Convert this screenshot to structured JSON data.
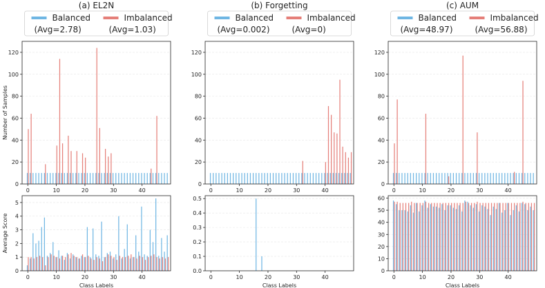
{
  "colors": {
    "balanced": "#6fb6e3",
    "imbalanced": "#e57f79"
  },
  "chart_data": [
    {
      "type": "bar",
      "title": "(a) EL2N",
      "legend": {
        "balanced_label": "Balanced",
        "imbalanced_label": "Imbalanced",
        "balanced_avg": "(Avg=2.78)",
        "imbalanced_avg": "(Avg=1.03)"
      },
      "top": {
        "ylabel": "Number of Samples",
        "ylim": [
          0,
          130
        ],
        "yticks": [
          0,
          20,
          40,
          60,
          80,
          100,
          120
        ],
        "xlim": [
          -2,
          50
        ],
        "xticks": [
          0,
          10,
          20,
          30,
          40
        ],
        "balanced": {
          "x": [
            0,
            1,
            2,
            3,
            4,
            5,
            6,
            7,
            8,
            9,
            10,
            11,
            12,
            13,
            14,
            15,
            16,
            17,
            18,
            19,
            20,
            21,
            22,
            23,
            24,
            25,
            26,
            27,
            28,
            29,
            30,
            31,
            32,
            33,
            34,
            35,
            36,
            37,
            38,
            39,
            40,
            41,
            42,
            43,
            44,
            45,
            46,
            47,
            48,
            49
          ],
          "values": [
            10,
            10,
            10,
            10,
            10,
            10,
            10,
            10,
            10,
            10,
            10,
            10,
            10,
            10,
            10,
            10,
            10,
            10,
            10,
            10,
            10,
            10,
            10,
            10,
            10,
            10,
            10,
            10,
            10,
            10,
            10,
            10,
            10,
            10,
            10,
            10,
            10,
            10,
            10,
            10,
            10,
            10,
            10,
            10,
            10,
            10,
            10,
            10,
            10,
            10
          ]
        },
        "imbalanced": {
          "x": [
            0,
            1,
            6,
            10,
            11,
            12,
            14,
            15,
            17,
            19,
            20,
            24,
            25,
            27,
            28,
            29,
            43,
            45
          ],
          "values": [
            50,
            64,
            18,
            35,
            114,
            37,
            44,
            30,
            30,
            28,
            24,
            124,
            51,
            32,
            25,
            28,
            14,
            62
          ]
        }
      },
      "bottom": {
        "ylabel": "Average Score",
        "xlabel": "Class Labels",
        "ylim": [
          0,
          5.5
        ],
        "yticks": [
          0,
          1,
          2,
          3,
          4,
          5
        ],
        "xlim": [
          -2,
          50
        ],
        "xticks": [
          0,
          10,
          20,
          30,
          40
        ],
        "balanced": {
          "x": [
            0,
            1,
            2,
            3,
            4,
            5,
            6,
            7,
            8,
            9,
            10,
            11,
            12,
            13,
            14,
            15,
            16,
            17,
            18,
            19,
            20,
            21,
            22,
            23,
            24,
            25,
            26,
            27,
            28,
            29,
            30,
            31,
            32,
            33,
            34,
            35,
            36,
            37,
            38,
            39,
            40,
            41,
            42,
            43,
            44,
            45,
            46,
            47,
            48,
            49
          ],
          "values": [
            0.4,
            0.9,
            2.75,
            2.0,
            2.2,
            3.2,
            3.9,
            1.1,
            1.3,
            2.1,
            1.0,
            1.5,
            1.1,
            0.8,
            1.3,
            0.9,
            1.2,
            1.0,
            0.9,
            1.1,
            1.0,
            3.2,
            1.0,
            3.1,
            1.2,
            1.1,
            3.6,
            1.0,
            1.3,
            1.4,
            0.9,
            1.2,
            4.0,
            0.9,
            1.6,
            3.4,
            0.9,
            1.0,
            2.6,
            1.4,
            4.7,
            1.2,
            1.1,
            3.0,
            2.1,
            5.3,
            1.1,
            2.4,
            1.4,
            2.6
          ]
        },
        "imbalanced": {
          "x": [
            0,
            1,
            2,
            3,
            4,
            5,
            6,
            7,
            8,
            9,
            10,
            11,
            12,
            13,
            14,
            15,
            16,
            17,
            18,
            19,
            20,
            21,
            22,
            23,
            24,
            25,
            26,
            27,
            28,
            29,
            30,
            31,
            32,
            33,
            34,
            35,
            36,
            37,
            38,
            39,
            40,
            41,
            42,
            43,
            44,
            45,
            46,
            47,
            48,
            49
          ],
          "values": [
            1.0,
            1.0,
            0.9,
            1.0,
            1.1,
            1.0,
            0.4,
            1.0,
            1.2,
            1.1,
            1.0,
            0.9,
            1.1,
            1.0,
            1.2,
            1.3,
            1.1,
            1.0,
            0.9,
            1.2,
            1.0,
            1.1,
            0.9,
            0.8,
            1.0,
            0.9,
            0.7,
            1.0,
            1.2,
            1.1,
            1.0,
            0.8,
            1.1,
            1.0,
            1.0,
            1.1,
            1.2,
            1.0,
            0.9,
            1.1,
            1.0,
            0.8,
            1.0,
            1.1,
            1.2,
            1.0,
            0.9,
            1.0,
            0.9,
            1.0
          ]
        }
      }
    },
    {
      "type": "bar",
      "title": "(b) Forgetting",
      "legend": {
        "balanced_label": "Balanced",
        "imbalanced_label": "Imbalanced",
        "balanced_avg": "(Avg=0.002)",
        "imbalanced_avg": "(Avg=0)"
      },
      "top": {
        "ylabel": "",
        "ylim": [
          0,
          130
        ],
        "yticks": [
          0,
          20,
          40,
          60,
          80,
          100,
          120
        ],
        "xlim": [
          -2,
          50
        ],
        "xticks": [
          0,
          10,
          20,
          30,
          40
        ],
        "balanced": {
          "x": [
            0,
            1,
            2,
            3,
            4,
            5,
            6,
            7,
            8,
            9,
            10,
            11,
            12,
            13,
            14,
            15,
            16,
            17,
            18,
            19,
            20,
            21,
            22,
            23,
            24,
            25,
            26,
            27,
            28,
            29,
            30,
            31,
            32,
            33,
            34,
            35,
            36,
            37,
            38,
            39,
            40,
            41,
            42,
            43,
            44,
            45,
            46,
            47,
            48,
            49
          ],
          "values": [
            10,
            10,
            10,
            10,
            10,
            10,
            10,
            10,
            10,
            10,
            10,
            10,
            10,
            10,
            10,
            10,
            10,
            10,
            10,
            10,
            10,
            10,
            10,
            10,
            10,
            10,
            10,
            10,
            10,
            10,
            10,
            10,
            10,
            10,
            10,
            10,
            10,
            10,
            10,
            10,
            10,
            10,
            10,
            10,
            10,
            10,
            10,
            10,
            10,
            10
          ]
        },
        "imbalanced": {
          "x": [
            32,
            40,
            41,
            42,
            43,
            44,
            45,
            46,
            47,
            48,
            49
          ],
          "values": [
            21,
            20,
            71,
            63,
            47,
            46,
            95,
            34,
            29,
            24,
            29
          ]
        }
      },
      "bottom": {
        "ylabel": "",
        "xlabel": "Class Labels",
        "ylim": [
          0,
          0.52
        ],
        "yticks": [
          0.0,
          0.1,
          0.2,
          0.3,
          0.4,
          0.5
        ],
        "xlim": [
          -2,
          50
        ],
        "xticks": [
          0,
          10,
          20,
          30,
          40
        ],
        "balanced": {
          "x": [
            16,
            18
          ],
          "values": [
            0.5,
            0.1
          ]
        },
        "imbalanced": {
          "x": [],
          "values": []
        }
      }
    },
    {
      "type": "bar",
      "title": "(c) AUM",
      "legend": {
        "balanced_label": "Balanced",
        "imbalanced_label": "Imbalanced",
        "balanced_avg": "(Avg=48.97)",
        "imbalanced_avg": "(Avg=56.88)"
      },
      "top": {
        "ylabel": "",
        "ylim": [
          0,
          130
        ],
        "yticks": [
          0,
          20,
          40,
          60,
          80,
          100,
          120
        ],
        "xlim": [
          -2,
          50
        ],
        "xticks": [
          0,
          10,
          20,
          30,
          40
        ],
        "balanced": {
          "x": [
            0,
            1,
            2,
            3,
            4,
            5,
            6,
            7,
            8,
            9,
            10,
            11,
            12,
            13,
            14,
            15,
            16,
            17,
            18,
            19,
            20,
            21,
            22,
            23,
            24,
            25,
            26,
            27,
            28,
            29,
            30,
            31,
            32,
            33,
            34,
            35,
            36,
            37,
            38,
            39,
            40,
            41,
            42,
            43,
            44,
            45,
            46,
            47,
            48,
            49
          ],
          "values": [
            10,
            10,
            10,
            10,
            10,
            10,
            10,
            10,
            10,
            10,
            10,
            10,
            10,
            10,
            10,
            10,
            10,
            10,
            10,
            10,
            10,
            10,
            10,
            10,
            10,
            10,
            10,
            10,
            10,
            10,
            10,
            10,
            10,
            10,
            10,
            10,
            10,
            10,
            10,
            10,
            10,
            10,
            10,
            10,
            10,
            10,
            10,
            10,
            10,
            10
          ]
        },
        "imbalanced": {
          "x": [
            0,
            1,
            11,
            19,
            24,
            29,
            42,
            45
          ],
          "values": [
            37,
            77,
            64,
            7,
            117,
            47,
            11,
            94
          ]
        }
      },
      "bottom": {
        "ylabel": "",
        "xlabel": "Class Labels",
        "ylim": [
          0,
          62
        ],
        "yticks": [
          0,
          10,
          20,
          30,
          40,
          50,
          60
        ],
        "xlim": [
          -2,
          50
        ],
        "xticks": [
          0,
          10,
          20,
          30,
          40
        ],
        "balanced": {
          "x": [
            0,
            1,
            2,
            3,
            4,
            5,
            6,
            7,
            8,
            9,
            10,
            11,
            12,
            13,
            14,
            15,
            16,
            17,
            18,
            19,
            20,
            21,
            22,
            23,
            24,
            25,
            26,
            27,
            28,
            29,
            30,
            31,
            32,
            33,
            34,
            35,
            36,
            37,
            38,
            39,
            40,
            41,
            42,
            43,
            44,
            45,
            46,
            47,
            48,
            49
          ],
          "values": [
            58,
            55,
            50,
            50,
            50,
            49,
            54,
            48,
            56,
            49,
            54,
            58,
            52,
            55,
            53,
            53,
            52,
            55,
            50,
            54,
            54,
            52,
            51,
            54,
            49,
            58,
            57,
            54,
            52,
            55,
            49,
            54,
            53,
            51,
            46,
            53,
            51,
            56,
            48,
            50,
            56,
            46,
            50,
            54,
            49,
            56,
            55,
            50,
            53,
            50
          ]
        },
        "imbalanced": {
          "x": [
            0,
            1,
            2,
            3,
            4,
            5,
            6,
            7,
            8,
            9,
            10,
            11,
            12,
            13,
            14,
            15,
            16,
            17,
            18,
            19,
            20,
            21,
            22,
            23,
            24,
            25,
            26,
            27,
            28,
            29,
            30,
            31,
            32,
            33,
            34,
            35,
            36,
            37,
            38,
            39,
            40,
            41,
            42,
            43,
            44,
            45,
            46,
            47,
            48,
            49
          ],
          "values": [
            57,
            57,
            56,
            56,
            56,
            56,
            57,
            56,
            56,
            56,
            56,
            57,
            56,
            56,
            56,
            56,
            56,
            56,
            56,
            56,
            56,
            56,
            56,
            56,
            56,
            57,
            56,
            56,
            56,
            57,
            56,
            56,
            56,
            56,
            56,
            56,
            56,
            56,
            56,
            56,
            56,
            56,
            56,
            56,
            56,
            57,
            56,
            56,
            56,
            56
          ]
        }
      }
    }
  ]
}
